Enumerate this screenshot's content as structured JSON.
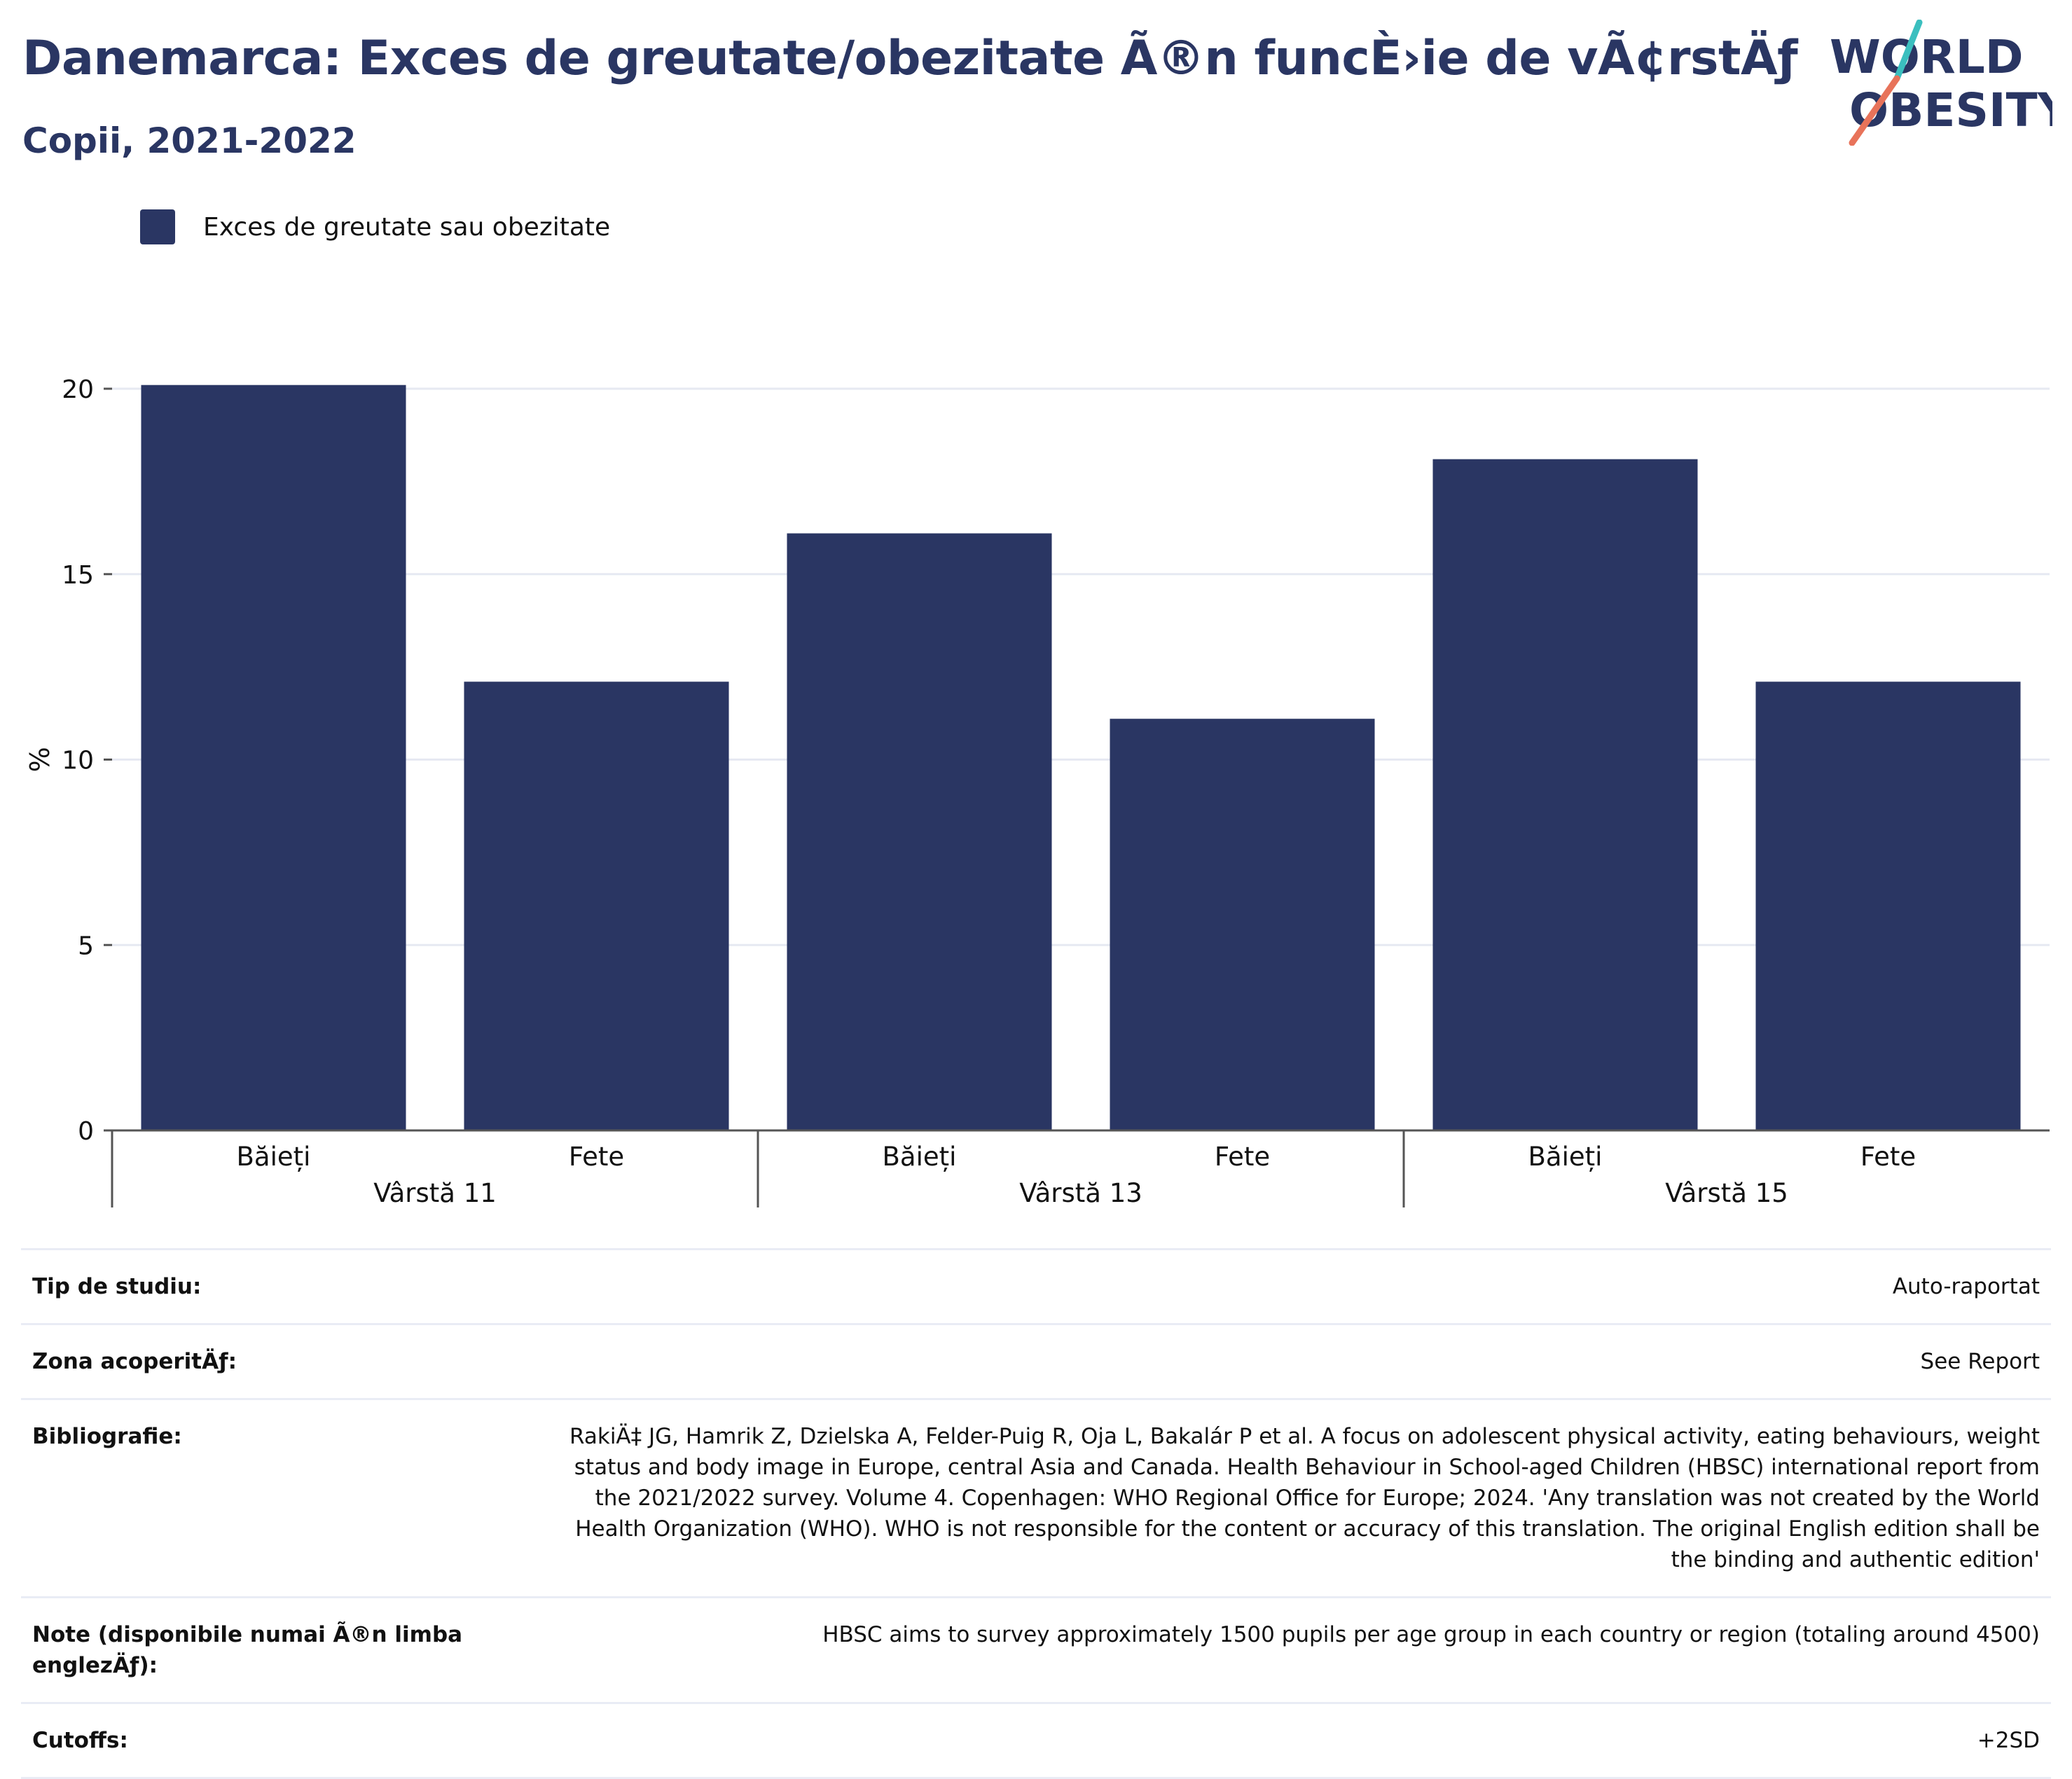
{
  "header": {
    "title": "Danemarca: Exces de greutate/obezitate Ã®n funcÈ›ie de vÃ¢rstÄƒ",
    "subtitle": "Copii, 2021-2022"
  },
  "logo": {
    "line1": "WORLD",
    "line2": "OBESITY",
    "colors": {
      "text": "#2a3663",
      "slash_top": "#3bbfbf",
      "slash_bottom": "#e8735a"
    }
  },
  "legend": {
    "label": "Exces de greutate sau obezitate",
    "color": "#2a3663"
  },
  "chart_data": {
    "type": "bar",
    "ylabel": "%",
    "ylim": [
      0,
      20
    ],
    "yticks": [
      0,
      5,
      10,
      15,
      20
    ],
    "grid": true,
    "bar_color": "#2a3663",
    "groups": [
      {
        "label": "Vârstă 11",
        "categories": [
          "Băieți",
          "Fete"
        ],
        "values": [
          20.1,
          12.1
        ]
      },
      {
        "label": "Vârstă 13",
        "categories": [
          "Băieți",
          "Fete"
        ],
        "values": [
          16.1,
          11.1
        ]
      },
      {
        "label": "Vârstă 15",
        "categories": [
          "Băieți",
          "Fete"
        ],
        "values": [
          18.1,
          12.1
        ]
      }
    ]
  },
  "info_table": [
    {
      "label": "Tip de studiu:",
      "value": "Auto-raportat"
    },
    {
      "label": "Zona acoperitÄƒ:",
      "value": "See Report"
    },
    {
      "label": "Bibliografie:",
      "value": "RakiÄ‡ JG, Hamrik Z, Dzielska A, Felder-Puig R, Oja L, Bakalár P et al. A focus on adolescent physical activity, eating behaviours, weight status and body image in Europe, central Asia and Canada. Health Behaviour in School-aged Children (HBSC) international report from the 2021/2022 survey. Volume 4. Copenhagen: WHO Regional Office for Europe; 2024. 'Any translation was not created by the World Health Organization (WHO). WHO is not responsible for the content or accuracy of this translation. The original English edition shall be the binding and authentic edition'"
    },
    {
      "label": "Note (disponibile numai Ã®n limba englezÄƒ):",
      "value": "HBSC aims to survey approximately 1500 pupils per age group in each country or region (totaling around 4500)"
    },
    {
      "label": "Cutoffs:",
      "value": "+2SD"
    }
  ]
}
